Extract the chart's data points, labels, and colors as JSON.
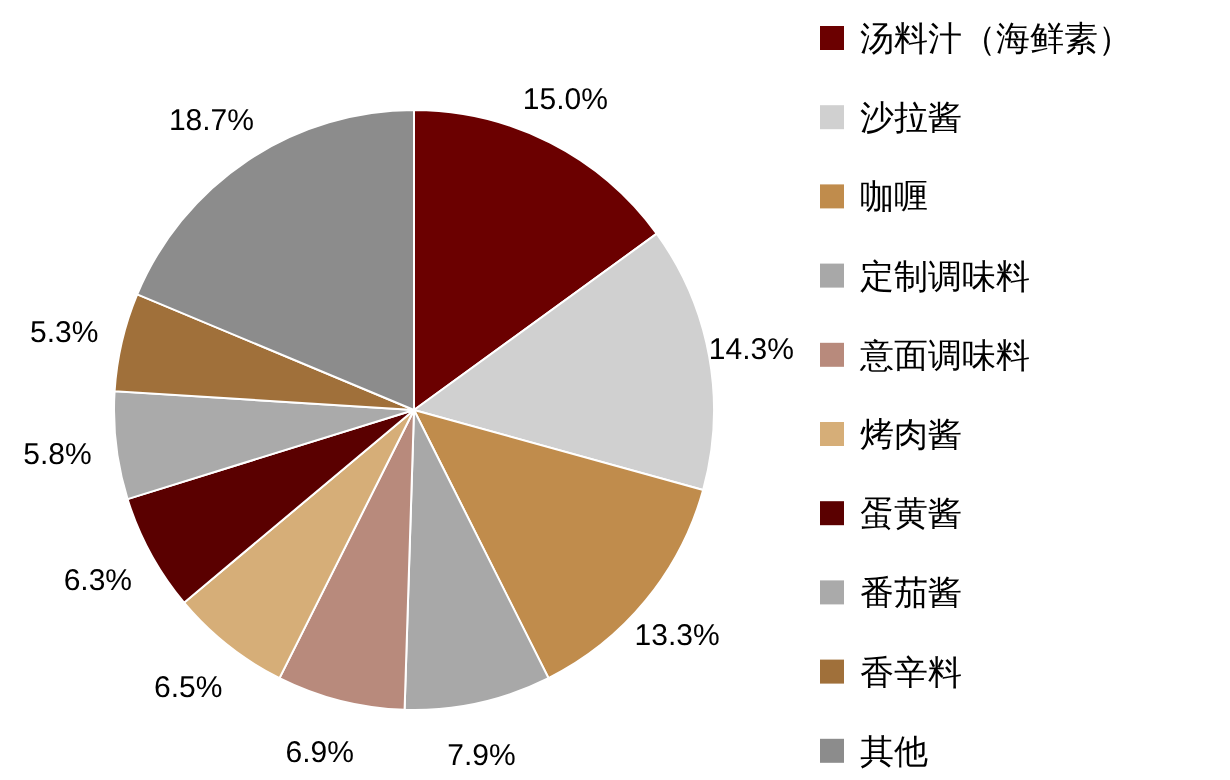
{
  "chart_data": {
    "type": "pie",
    "categories": [
      "汤料汁（海鲜素）",
      "沙拉酱",
      "咖喱",
      "定制调味料",
      "意面调味料",
      "烤肉酱",
      "蛋黄酱",
      "番茄酱",
      "香辛料",
      "其他"
    ],
    "values": [
      15.0,
      14.3,
      13.3,
      7.9,
      6.9,
      6.5,
      6.3,
      5.8,
      5.3,
      18.7
    ],
    "value_labels": [
      "15.0%",
      "14.3%",
      "13.3%",
      "7.9%",
      "6.9%",
      "6.5%",
      "6.3%",
      "5.8%",
      "5.3%",
      "18.7%"
    ],
    "colors": [
      "#6b0000",
      "#d0d0d0",
      "#c08c4c",
      "#a8a8a8",
      "#b88a7c",
      "#d6ae78",
      "#5a0000",
      "#aaaaaa",
      "#a0703a",
      "#8c8c8c"
    ],
    "legend": "right"
  }
}
